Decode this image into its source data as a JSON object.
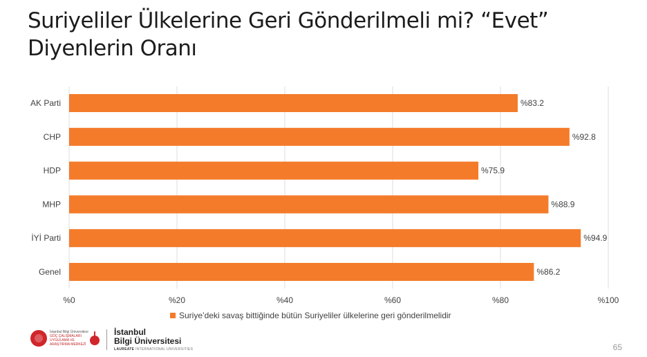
{
  "title_lines": [
    "Suriyeliler Ülkelerine Geri Gönderilmeli mi? “Evet”",
    "Diyenlerin Oranı"
  ],
  "chart_data": {
    "type": "bar",
    "orientation": "horizontal",
    "categories": [
      "AK Parti",
      "CHP",
      "HDP",
      "MHP",
      "İYİ Parti",
      "Genel"
    ],
    "series": [
      {
        "name": "Suriye’deki savaş bittiğinde bütün Suriyeliler ülkelerine geri gönderilmelidir",
        "values": [
          83.2,
          92.8,
          75.9,
          88.9,
          94.9,
          86.2
        ],
        "data_labels": [
          "%83.2",
          "%92.8",
          "%75.9",
          "%88.9",
          "%94.9",
          "%86.2"
        ]
      }
    ],
    "xlim": [
      0,
      100
    ],
    "x_ticks": [
      0,
      20,
      40,
      60,
      80,
      100
    ],
    "x_tick_labels": [
      "%0",
      "%20",
      "%40",
      "%60",
      "%80",
      "%100"
    ],
    "grid": true,
    "legend_position": "bottom",
    "bar_color": "#f47b2a"
  },
  "footer": {
    "gocmer_lines": [
      "İstanbul Bilgi Üniversitesi",
      "GÖÇ ÇALIŞMALARI",
      "UYGULAMA VE",
      "ARAŞTIRMA MERKEZİ"
    ],
    "university_lines": [
      "İstanbul",
      "Bilgi Üniversitesi"
    ],
    "tag_bold": "LAUREATE",
    "tag_rest": " INTERNATIONAL UNIVERSITIES",
    "page_number": "65"
  }
}
